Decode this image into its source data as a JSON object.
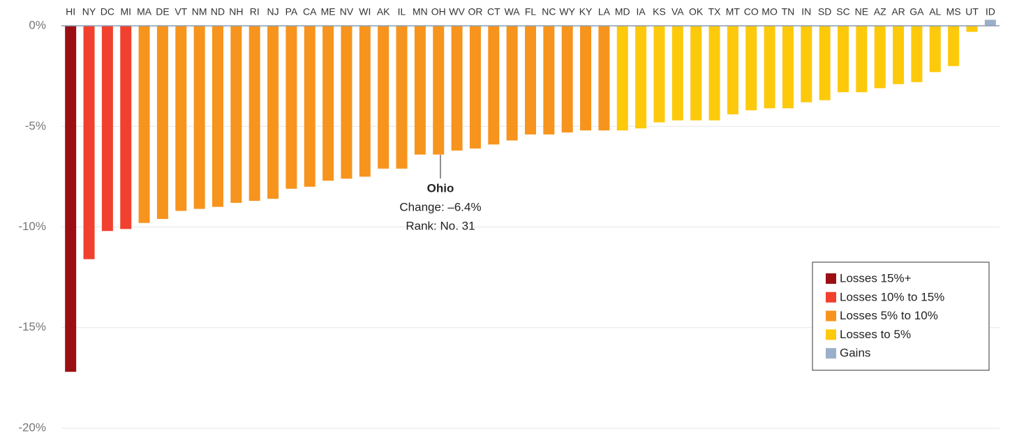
{
  "chart_data": {
    "type": "bar",
    "categories": [
      "HI",
      "NY",
      "DC",
      "MI",
      "MA",
      "DE",
      "VT",
      "NM",
      "ND",
      "NH",
      "RI",
      "NJ",
      "PA",
      "CA",
      "ME",
      "NV",
      "WI",
      "AK",
      "IL",
      "MN",
      "OH",
      "WV",
      "OR",
      "CT",
      "WA",
      "FL",
      "NC",
      "WY",
      "KY",
      "LA",
      "MD",
      "IA",
      "KS",
      "VA",
      "OK",
      "TX",
      "MT",
      "CO",
      "MO",
      "TN",
      "IN",
      "SD",
      "SC",
      "NE",
      "AZ",
      "AR",
      "GA",
      "AL",
      "MS",
      "UT",
      "ID"
    ],
    "values": [
      -17.2,
      -11.6,
      -10.2,
      -10.1,
      -9.8,
      -9.6,
      -9.2,
      -9.1,
      -9.0,
      -8.8,
      -8.7,
      -8.6,
      -8.1,
      -8.0,
      -7.7,
      -7.6,
      -7.5,
      -7.1,
      -7.1,
      -6.4,
      -6.4,
      -6.2,
      -6.1,
      -5.9,
      -5.7,
      -5.4,
      -5.4,
      -5.3,
      -5.2,
      -5.2,
      -5.2,
      -5.1,
      -4.8,
      -4.7,
      -4.7,
      -4.7,
      -4.4,
      -4.2,
      -4.1,
      -4.1,
      -3.8,
      -3.7,
      -3.3,
      -3.3,
      -3.1,
      -2.9,
      -2.8,
      -2.3,
      -2.0,
      -0.3,
      0.3
    ],
    "colors": [
      "#9b0e14",
      "#f2402f",
      "#f2402f",
      "#f2402f",
      "#f7941d",
      "#f7941d",
      "#f7941d",
      "#f7941d",
      "#f7941d",
      "#f7941d",
      "#f7941d",
      "#f7941d",
      "#f7941d",
      "#f7941d",
      "#f7941d",
      "#f7941d",
      "#f7941d",
      "#f7941d",
      "#f7941d",
      "#f7941d",
      "#f7941d",
      "#f7941d",
      "#f7941d",
      "#f7941d",
      "#f7941d",
      "#f7941d",
      "#f7941d",
      "#f7941d",
      "#f7941d",
      "#f7941d",
      "#fdc90b",
      "#fdc90b",
      "#fdc90b",
      "#fdc90b",
      "#fdc90b",
      "#fdc90b",
      "#fdc90b",
      "#fdc90b",
      "#fdc90b",
      "#fdc90b",
      "#fdc90b",
      "#fdc90b",
      "#fdc90b",
      "#fdc90b",
      "#fdc90b",
      "#fdc90b",
      "#fdc90b",
      "#fdc90b",
      "#fdc90b",
      "#fdc90b",
      "#9aafc9"
    ],
    "ylim": [
      -20,
      0.5
    ],
    "yticks": [
      {
        "value": 0,
        "label": "0%"
      },
      {
        "value": -5,
        "label": "-5%"
      },
      {
        "value": -10,
        "label": "-10%"
      },
      {
        "value": -15,
        "label": "-15%"
      },
      {
        "value": -20,
        "label": "-20%"
      }
    ],
    "grid": true,
    "legend": [
      {
        "label": "Losses 15%+",
        "color": "#9b0e14"
      },
      {
        "label": "Losses 10% to 15%",
        "color": "#f2402f"
      },
      {
        "label": "Losses 5% to 10%",
        "color": "#f7941d"
      },
      {
        "label": "Losses to 5%",
        "color": "#fdc90b"
      },
      {
        "label": "Gains",
        "color": "#9aafc9"
      }
    ],
    "annotation": {
      "title": "Ohio",
      "lines": [
        "Change: –6.4%",
        "Rank: No. 31"
      ]
    }
  }
}
